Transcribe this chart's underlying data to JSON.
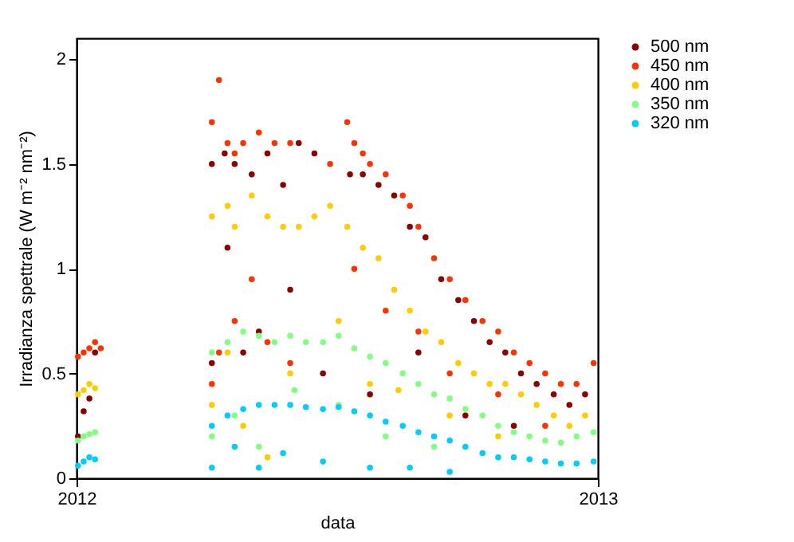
{
  "chart_data": {
    "type": "scatter",
    "xlabel": "data",
    "ylabel": "Irradianza spettrale (W m⁻² nm⁻²)",
    "xlim": [
      "2012",
      "2013"
    ],
    "xticks": [
      "2012",
      "2013"
    ],
    "ylim": [
      0,
      2.1
    ],
    "yticks": [
      0,
      0.5,
      1,
      1.5,
      2
    ],
    "grid": false,
    "legend": "right",
    "marker": "circle",
    "series": [
      {
        "name": "500 nm",
        "color": "#8b0000",
        "x": [
          "2012-01-02",
          "2012-01-06",
          "2012-01-10",
          "2012-01-14",
          "2012-04-05",
          "2012-04-14",
          "2012-04-21",
          "2012-05-03",
          "2012-05-14",
          "2012-05-25",
          "2012-06-05",
          "2012-06-16",
          "2012-07-11",
          "2012-07-20",
          "2012-07-31",
          "2012-08-11",
          "2012-08-22",
          "2012-09-02",
          "2012-09-13",
          "2012-09-25",
          "2012-10-06",
          "2012-10-17",
          "2012-10-28",
          "2012-11-08",
          "2012-11-19",
          "2012-12-01",
          "2012-12-12",
          "2012-12-23",
          "2012-04-05",
          "2012-04-16",
          "2012-04-27",
          "2012-05-08",
          "2012-05-30",
          "2012-06-22",
          "2012-07-25",
          "2012-08-28",
          "2012-09-30",
          "2012-11-03"
        ],
        "values": [
          0.2,
          0.32,
          0.38,
          0.6,
          1.5,
          1.55,
          1.5,
          1.45,
          1.55,
          1.4,
          1.6,
          1.55,
          1.45,
          1.45,
          1.4,
          1.35,
          1.2,
          1.15,
          0.95,
          0.85,
          0.75,
          0.65,
          0.6,
          0.5,
          0.45,
          0.4,
          0.35,
          0.4,
          0.55,
          1.1,
          0.6,
          0.7,
          0.9,
          0.5,
          0.4,
          0.6,
          0.3,
          0.25
        ]
      },
      {
        "name": "450 nm",
        "color": "#ff3300",
        "x": [
          "2012-01-02",
          "2012-01-06",
          "2012-01-10",
          "2012-01-14",
          "2012-01-18",
          "2012-04-05",
          "2012-04-10",
          "2012-04-16",
          "2012-04-21",
          "2012-04-27",
          "2012-05-08",
          "2012-05-19",
          "2012-05-30",
          "2012-06-27",
          "2012-07-09",
          "2012-07-14",
          "2012-07-20",
          "2012-07-25",
          "2012-08-05",
          "2012-08-17",
          "2012-08-22",
          "2012-08-28",
          "2012-09-08",
          "2012-09-19",
          "2012-09-30",
          "2012-10-12",
          "2012-10-23",
          "2012-11-03",
          "2012-11-14",
          "2012-11-25",
          "2012-12-06",
          "2012-12-17",
          "2012-12-29",
          "2012-04-05",
          "2012-04-10",
          "2012-04-21",
          "2012-05-03",
          "2012-05-14",
          "2012-05-30",
          "2012-07-14",
          "2012-08-05",
          "2012-08-28",
          "2012-09-19",
          "2012-10-23",
          "2012-11-25"
        ],
        "values": [
          0.58,
          0.6,
          0.62,
          0.65,
          0.62,
          1.7,
          1.9,
          1.6,
          1.55,
          1.6,
          1.65,
          1.6,
          1.6,
          1.5,
          1.7,
          1.6,
          1.55,
          1.5,
          1.45,
          1.35,
          1.3,
          1.2,
          1.05,
          0.95,
          0.85,
          0.75,
          0.7,
          0.6,
          0.55,
          0.5,
          0.45,
          0.45,
          0.55,
          0.45,
          0.6,
          0.75,
          0.95,
          0.65,
          0.55,
          1.0,
          0.8,
          0.7,
          0.5,
          0.4,
          0.25
        ]
      },
      {
        "name": "400 nm",
        "color": "#ffcc00",
        "x": [
          "2012-01-02",
          "2012-01-06",
          "2012-01-10",
          "2012-01-14",
          "2012-04-05",
          "2012-04-16",
          "2012-04-21",
          "2012-05-03",
          "2012-05-14",
          "2012-05-25",
          "2012-06-05",
          "2012-06-16",
          "2012-06-27",
          "2012-07-09",
          "2012-07-20",
          "2012-07-31",
          "2012-08-11",
          "2012-08-22",
          "2012-09-02",
          "2012-09-13",
          "2012-09-25",
          "2012-10-06",
          "2012-10-17",
          "2012-10-28",
          "2012-11-08",
          "2012-11-19",
          "2012-12-01",
          "2012-12-12",
          "2012-12-23",
          "2012-04-05",
          "2012-04-16",
          "2012-04-27",
          "2012-05-14",
          "2012-05-30",
          "2012-07-03",
          "2012-07-25",
          "2012-08-14",
          "2012-09-19",
          "2012-10-23"
        ],
        "values": [
          0.4,
          0.42,
          0.45,
          0.43,
          1.25,
          1.3,
          1.2,
          1.35,
          1.25,
          1.2,
          1.2,
          1.25,
          1.3,
          1.2,
          1.1,
          1.05,
          0.9,
          0.8,
          0.7,
          0.65,
          0.55,
          0.5,
          0.45,
          0.45,
          0.4,
          0.35,
          0.3,
          0.25,
          0.3,
          0.35,
          0.6,
          0.25,
          0.1,
          0.5,
          0.75,
          0.45,
          0.42,
          0.3,
          0.2
        ]
      },
      {
        "name": "350 nm",
        "color": "#80ff80",
        "x": [
          "2012-01-02",
          "2012-01-06",
          "2012-01-10",
          "2012-01-14",
          "2012-04-05",
          "2012-04-16",
          "2012-04-27",
          "2012-05-08",
          "2012-05-19",
          "2012-05-30",
          "2012-06-10",
          "2012-06-22",
          "2012-07-03",
          "2012-07-14",
          "2012-07-25",
          "2012-08-05",
          "2012-08-17",
          "2012-08-28",
          "2012-09-08",
          "2012-09-19",
          "2012-09-30",
          "2012-10-12",
          "2012-10-23",
          "2012-11-03",
          "2012-11-14",
          "2012-11-25",
          "2012-12-06",
          "2012-12-17",
          "2012-12-29",
          "2012-04-05",
          "2012-04-21",
          "2012-05-08",
          "2012-06-02",
          "2012-07-03",
          "2012-08-05",
          "2012-09-08"
        ],
        "values": [
          0.18,
          0.2,
          0.21,
          0.22,
          0.6,
          0.65,
          0.7,
          0.68,
          0.65,
          0.68,
          0.65,
          0.65,
          0.68,
          0.62,
          0.58,
          0.55,
          0.5,
          0.45,
          0.4,
          0.38,
          0.33,
          0.3,
          0.25,
          0.22,
          0.2,
          0.18,
          0.17,
          0.2,
          0.22,
          0.2,
          0.3,
          0.15,
          0.42,
          0.35,
          0.2,
          0.15
        ]
      },
      {
        "name": "320 nm",
        "color": "#00ccff",
        "x": [
          "2012-01-02",
          "2012-01-06",
          "2012-01-10",
          "2012-01-14",
          "2012-04-05",
          "2012-04-16",
          "2012-04-27",
          "2012-05-08",
          "2012-05-19",
          "2012-05-30",
          "2012-06-10",
          "2012-06-22",
          "2012-07-03",
          "2012-07-14",
          "2012-07-25",
          "2012-08-05",
          "2012-08-17",
          "2012-08-28",
          "2012-09-08",
          "2012-09-19",
          "2012-09-30",
          "2012-10-12",
          "2012-10-23",
          "2012-11-03",
          "2012-11-14",
          "2012-11-25",
          "2012-12-06",
          "2012-12-17",
          "2012-12-29",
          "2012-04-05",
          "2012-04-21",
          "2012-05-08",
          "2012-05-25",
          "2012-06-22",
          "2012-07-25",
          "2012-08-22",
          "2012-09-19"
        ],
        "values": [
          0.06,
          0.08,
          0.1,
          0.09,
          0.25,
          0.3,
          0.33,
          0.35,
          0.35,
          0.35,
          0.34,
          0.33,
          0.34,
          0.32,
          0.3,
          0.27,
          0.25,
          0.22,
          0.2,
          0.18,
          0.15,
          0.12,
          0.1,
          0.1,
          0.09,
          0.08,
          0.07,
          0.07,
          0.08,
          0.05,
          0.15,
          0.05,
          0.12,
          0.08,
          0.05,
          0.05,
          0.03
        ]
      }
    ]
  }
}
